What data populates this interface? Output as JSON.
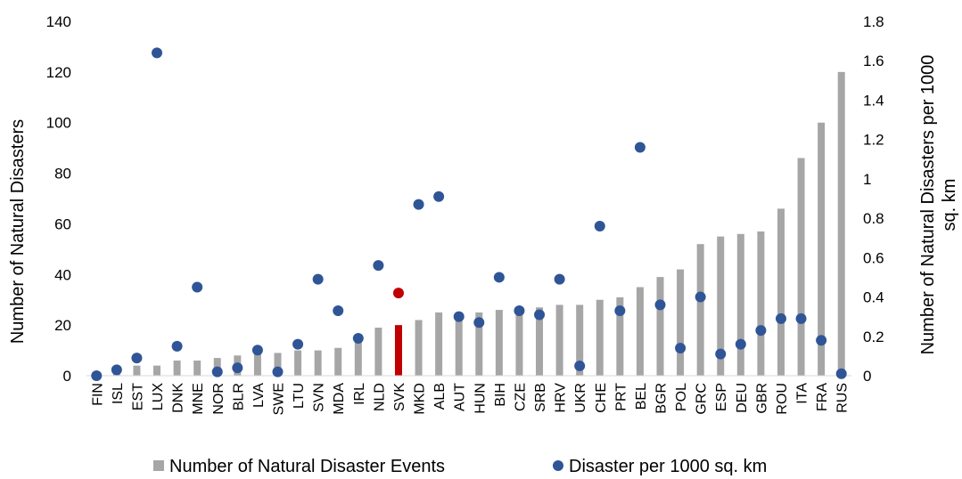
{
  "chart_data": {
    "type": "bar",
    "categories": [
      "FIN",
      "ISL",
      "EST",
      "LUX",
      "DNK",
      "MNE",
      "NOR",
      "BLR",
      "LVA",
      "SWE",
      "LTU",
      "SVN",
      "MDA",
      "IRL",
      "NLD",
      "SVK",
      "MKD",
      "ALB",
      "AUT",
      "HUN",
      "BIH",
      "CZE",
      "SRB",
      "HRV",
      "UKR",
      "CHE",
      "PRT",
      "BEL",
      "BGR",
      "POL",
      "GRC",
      "ESP",
      "DEU",
      "GBR",
      "ROU",
      "ITA",
      "FRA",
      "RUS"
    ],
    "series": [
      {
        "name": "Number of Natural Disaster Events",
        "kind": "bar",
        "axis": "left",
        "color": "#a6a6a6",
        "values": [
          0,
          3,
          4,
          4,
          6,
          6,
          7,
          8,
          9,
          9,
          10,
          10,
          11,
          15,
          19,
          20,
          22,
          25,
          25,
          25,
          26,
          26,
          27,
          28,
          28,
          30,
          31,
          35,
          39,
          42,
          52,
          55,
          56,
          57,
          66,
          86,
          100,
          120
        ]
      },
      {
        "name": "Disaster per 1000 sq. km",
        "kind": "scatter",
        "axis": "right",
        "color": "#2f5597",
        "values": [
          0.0,
          0.03,
          0.09,
          1.64,
          0.15,
          0.45,
          0.02,
          0.04,
          0.13,
          0.02,
          0.16,
          0.49,
          0.33,
          0.19,
          0.56,
          0.42,
          0.87,
          0.91,
          0.3,
          0.27,
          0.5,
          0.33,
          0.31,
          0.49,
          0.05,
          0.76,
          0.33,
          1.16,
          0.36,
          0.14,
          0.4,
          0.11,
          0.16,
          0.23,
          0.29,
          0.29,
          0.18,
          0.01
        ]
      }
    ],
    "highlight": {
      "category": "SVK",
      "color": "#c00000"
    },
    "ylim": [
      0,
      140
    ],
    "yticks": [
      "0",
      "20",
      "40",
      "60",
      "80",
      "100",
      "120",
      "140"
    ],
    "y2lim": [
      0,
      1.8
    ],
    "y2ticks": [
      "0",
      "0.2",
      "0.4",
      "0.6",
      "0.8",
      "1",
      "1.2",
      "1.4",
      "1.6",
      "1.8"
    ],
    "ylabel": "Number of Natural Disasters",
    "y2label_line1": "Number of Natural Disasters per 1000",
    "y2label_line2": "sq. km",
    "title": "",
    "legend_position": "bottom",
    "grid": false
  }
}
